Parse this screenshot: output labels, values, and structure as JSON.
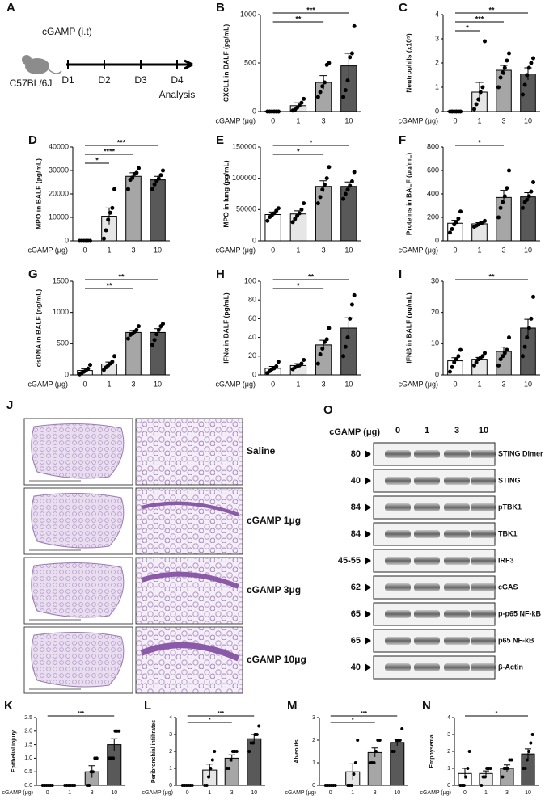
{
  "chart_data": [
    {
      "type": "bar",
      "panel": "B",
      "y_label": "CXCL1 in BALF (pg/mL)",
      "x_label": "cGAMP (μg)",
      "categories": [
        "0",
        "1",
        "3",
        "10"
      ],
      "values": [
        5,
        60,
        300,
        470
      ],
      "errors": [
        3,
        30,
        70,
        130
      ],
      "points": [
        [
          0,
          0,
          0,
          0,
          0,
          0
        ],
        [
          10,
          20,
          40,
          60,
          90,
          130
        ],
        [
          150,
          200,
          260,
          300,
          480,
          500
        ],
        [
          150,
          220,
          320,
          560,
          600,
          880
        ]
      ],
      "bar_colors": [
        "#ffffff",
        "#e6e6e6",
        "#a6a6a6",
        "#595959"
      ],
      "ylim": [
        0,
        1000
      ],
      "yticks": [
        0,
        500,
        1000
      ],
      "brackets": [
        {
          "from": "0",
          "to": "10",
          "label": "***"
        },
        {
          "from": "0",
          "to": "3",
          "label": "**"
        }
      ]
    },
    {
      "type": "bar",
      "panel": "C",
      "y_label": "Neutrophils (x10⁵)",
      "x_label": "cGAMP (μg)",
      "categories": [
        "0",
        "1",
        "3",
        "10"
      ],
      "values": [
        0.02,
        0.8,
        1.7,
        1.55
      ],
      "errors": [
        0.01,
        0.4,
        0.2,
        0.25
      ],
      "points": [
        [
          0,
          0,
          0,
          0,
          0,
          0
        ],
        [
          0.1,
          0.3,
          0.5,
          0.8,
          1.0,
          2.9
        ],
        [
          1.0,
          1.4,
          1.6,
          1.8,
          2.1,
          2.4
        ],
        [
          0.7,
          1.1,
          1.5,
          1.8,
          2.0,
          2.2
        ]
      ],
      "bar_colors": [
        "#ffffff",
        "#e6e6e6",
        "#a6a6a6",
        "#595959"
      ],
      "ylim": [
        0,
        4
      ],
      "yticks": [
        0,
        1,
        2,
        3,
        4
      ],
      "brackets": [
        {
          "from": "0",
          "to": "10",
          "label": "**"
        },
        {
          "from": "0",
          "to": "3",
          "label": "***"
        },
        {
          "from": "0",
          "to": "1",
          "label": "*"
        }
      ]
    },
    {
      "type": "bar",
      "panel": "D",
      "y_label": "MPO in BALF (pg/mL)",
      "x_label": "cGAMP (μg)",
      "categories": [
        "0",
        "1",
        "3",
        "10"
      ],
      "values": [
        0,
        10500,
        27500,
        26000
      ],
      "errors": [
        0,
        3500,
        1500,
        1500
      ],
      "points": [
        [
          0,
          0,
          0,
          0,
          0,
          0
        ],
        [
          1000,
          4500,
          9000,
          12000,
          14000,
          22000
        ],
        [
          22000,
          26000,
          27000,
          28500,
          29000,
          31000
        ],
        [
          22000,
          24000,
          25500,
          26500,
          28000,
          30000
        ]
      ],
      "bar_colors": [
        "#ffffff",
        "#e6e6e6",
        "#a6a6a6",
        "#595959"
      ],
      "ylim": [
        0,
        40000
      ],
      "yticks": [
        0,
        10000,
        20000,
        30000,
        40000
      ],
      "brackets": [
        {
          "from": "0",
          "to": "10",
          "label": "***"
        },
        {
          "from": "0",
          "to": "3",
          "label": "****"
        },
        {
          "from": "0",
          "to": "1",
          "label": "*"
        }
      ]
    },
    {
      "type": "bar",
      "panel": "E",
      "y_label": "MPO in lung (pg/mL)",
      "x_label": "cGAMP (μg)",
      "categories": [
        "0",
        "1",
        "3",
        "10"
      ],
      "values": [
        42000,
        43000,
        87000,
        87000
      ],
      "errors": [
        4000,
        5000,
        9000,
        7000
      ],
      "points": [
        [
          32000,
          38000,
          41000,
          44000,
          48000,
          52000
        ],
        [
          30000,
          35000,
          40000,
          44000,
          50000,
          60000
        ],
        [
          60000,
          70000,
          82000,
          90000,
          100000,
          118000
        ],
        [
          67000,
          75000,
          82000,
          88000,
          95000,
          110000
        ]
      ],
      "bar_colors": [
        "#ffffff",
        "#e6e6e6",
        "#a6a6a6",
        "#595959"
      ],
      "ylim": [
        0,
        150000
      ],
      "yticks": [
        0,
        50000,
        100000,
        150000
      ],
      "brackets": [
        {
          "from": "0",
          "to": "10",
          "label": "*"
        },
        {
          "from": "0",
          "to": "3",
          "label": "*"
        }
      ]
    },
    {
      "type": "bar",
      "panel": "F",
      "y_label": "Proteins in BALF (μg/mL)",
      "x_label": "cGAMP (μg)",
      "categories": [
        "0",
        "1",
        "3",
        "10"
      ],
      "values": [
        150,
        145,
        370,
        375
      ],
      "errors": [
        25,
        10,
        60,
        35
      ],
      "points": [
        [
          70,
          100,
          140,
          160,
          190,
          250
        ],
        [
          120,
          130,
          140,
          150,
          155,
          170
        ],
        [
          200,
          280,
          330,
          380,
          450,
          600
        ],
        [
          280,
          330,
          350,
          380,
          420,
          500
        ]
      ],
      "bar_colors": [
        "#ffffff",
        "#e6e6e6",
        "#a6a6a6",
        "#595959"
      ],
      "ylim": [
        0,
        800
      ],
      "yticks": [
        0,
        200,
        400,
        600,
        800
      ],
      "brackets": [
        {
          "from": "0",
          "to": "3",
          "label": "*"
        }
      ]
    },
    {
      "type": "bar",
      "panel": "G",
      "y_label": "dsDNA in BALF (ng/mL)",
      "x_label": "cGAMP (μg)",
      "categories": [
        "0",
        "1",
        "3",
        "10"
      ],
      "values": [
        70,
        175,
        680,
        680
      ],
      "errors": [
        25,
        30,
        30,
        60
      ],
      "points": [
        [
          10,
          30,
          50,
          70,
          100,
          160
        ],
        [
          80,
          120,
          150,
          180,
          210,
          300
        ],
        [
          580,
          640,
          660,
          690,
          720,
          780
        ],
        [
          480,
          560,
          650,
          720,
          780,
          820
        ]
      ],
      "bar_colors": [
        "#ffffff",
        "#e6e6e6",
        "#a6a6a6",
        "#595959"
      ],
      "ylim": [
        0,
        1500
      ],
      "yticks": [
        0,
        500,
        1000,
        1500
      ],
      "brackets": [
        {
          "from": "0",
          "to": "10",
          "label": "**"
        },
        {
          "from": "0",
          "to": "3",
          "label": "**"
        }
      ]
    },
    {
      "type": "bar",
      "panel": "H",
      "y_label": "IFNα in BALF (pg/mL)",
      "x_label": "cGAMP (μg)",
      "categories": [
        "0",
        "1",
        "3",
        "10"
      ],
      "values": [
        7,
        10,
        32,
        50
      ],
      "errors": [
        2,
        2,
        5,
        11
      ],
      "points": [
        [
          2,
          4,
          6,
          7,
          9,
          14
        ],
        [
          6,
          8,
          9,
          10,
          12,
          16
        ],
        [
          12,
          22,
          28,
          35,
          38,
          50
        ],
        [
          20,
          30,
          40,
          60,
          75,
          85
        ]
      ],
      "bar_colors": [
        "#ffffff",
        "#e6e6e6",
        "#a6a6a6",
        "#595959"
      ],
      "ylim": [
        0,
        100
      ],
      "yticks": [
        0,
        20,
        40,
        60,
        80,
        100
      ],
      "brackets": [
        {
          "from": "0",
          "to": "10",
          "label": "**"
        },
        {
          "from": "0",
          "to": "3",
          "label": "*"
        }
      ]
    },
    {
      "type": "bar",
      "panel": "I",
      "y_label": "IFNβ in BALF (pg/mL)",
      "x_label": "cGAMP (μg)",
      "categories": [
        "0",
        "1",
        "3",
        "10"
      ],
      "values": [
        4.5,
        5,
        7.5,
        15
      ],
      "errors": [
        1,
        0.6,
        1.4,
        2.8
      ],
      "points": [
        [
          1,
          2.5,
          4,
          5,
          6,
          8
        ],
        [
          3,
          4,
          5,
          5.5,
          6,
          7
        ],
        [
          3,
          5,
          6,
          7,
          8,
          12
        ],
        [
          6,
          9,
          12,
          15,
          18,
          25
        ]
      ],
      "bar_colors": [
        "#ffffff",
        "#e6e6e6",
        "#a6a6a6",
        "#595959"
      ],
      "ylim": [
        0,
        30
      ],
      "yticks": [
        0,
        10,
        20,
        30
      ],
      "brackets": [
        {
          "from": "0",
          "to": "10",
          "label": "**"
        }
      ]
    },
    {
      "type": "bar",
      "panel": "K",
      "y_label": "Epithelial injury",
      "x_label": "cGAMP (μg)",
      "categories": [
        "0",
        "1",
        "3",
        "10"
      ],
      "values": [
        0,
        0,
        0.5,
        1.5
      ],
      "errors": [
        0,
        0,
        0.22,
        0.22
      ],
      "points": [
        [
          0,
          0,
          0,
          0,
          0,
          0
        ],
        [
          0,
          0,
          0,
          0,
          0,
          0
        ],
        [
          0,
          0,
          0.5,
          0.5,
          1,
          1
        ],
        [
          1,
          1,
          1,
          2,
          2,
          2
        ]
      ],
      "bar_colors": [
        "#ffffff",
        "#e6e6e6",
        "#a6a6a6",
        "#595959"
      ],
      "ylim": [
        0,
        2.5
      ],
      "yticks": [
        {
          "value": 0,
          "label": "0.0"
        },
        0.5,
        {
          "value": 1,
          "label": "1.0"
        },
        1.5,
        {
          "value": 2,
          "label": "2.0"
        },
        2.5
      ],
      "brackets": [
        {
          "from": "0",
          "to": "10",
          "label": "***"
        }
      ]
    },
    {
      "type": "bar",
      "panel": "L",
      "y_label": "Peribronchial infiltrates",
      "x_label": "cGAMP (μg)",
      "categories": [
        "0",
        "1",
        "3",
        "10"
      ],
      "values": [
        0,
        0.9,
        1.6,
        2.75
      ],
      "errors": [
        0,
        0.35,
        0.2,
        0.25
      ],
      "points": [
        [
          0,
          0,
          0,
          0,
          0,
          0
        ],
        [
          0,
          0,
          0.5,
          1,
          1.5,
          2
        ],
        [
          1,
          1,
          1.5,
          2,
          2,
          2
        ],
        [
          2,
          2.5,
          2.5,
          3,
          3,
          3.5
        ]
      ],
      "bar_colors": [
        "#ffffff",
        "#e6e6e6",
        "#a6a6a6",
        "#595959"
      ],
      "ylim": [
        0,
        4
      ],
      "yticks": [
        0,
        1,
        2,
        3,
        4
      ],
      "brackets": [
        {
          "from": "0",
          "to": "10",
          "label": "***"
        },
        {
          "from": "0",
          "to": "3",
          "label": "*"
        }
      ]
    },
    {
      "type": "bar",
      "panel": "M",
      "y_label": "Alveolits",
      "x_label": "cGAMP (μg)",
      "categories": [
        "0",
        "1",
        "3",
        "10"
      ],
      "values": [
        0,
        0.6,
        1.45,
        1.9
      ],
      "errors": [
        0,
        0.35,
        0.2,
        0.15
      ],
      "points": [
        [
          0,
          0,
          0,
          0,
          0,
          0
        ],
        [
          0,
          0,
          0,
          0.5,
          1,
          2
        ],
        [
          1,
          1,
          1,
          1.5,
          2,
          2
        ],
        [
          1.5,
          1.5,
          2,
          2,
          2,
          2.5
        ]
      ],
      "bar_colors": [
        "#ffffff",
        "#e6e6e6",
        "#a6a6a6",
        "#595959"
      ],
      "ylim": [
        0,
        3
      ],
      "yticks": [
        0,
        1,
        2,
        3
      ],
      "brackets": [
        {
          "from": "0",
          "to": "10",
          "label": "***"
        },
        {
          "from": "0",
          "to": "3",
          "label": "*"
        }
      ]
    },
    {
      "type": "bar",
      "panel": "N",
      "y_label": "Emphysema",
      "x_label": "cGAMP (μg)",
      "categories": [
        "0",
        "1",
        "3",
        "10"
      ],
      "values": [
        0.7,
        0.7,
        1.0,
        1.85
      ],
      "errors": [
        0.3,
        0.15,
        0.2,
        0.3
      ],
      "points": [
        [
          0,
          0,
          0,
          0.5,
          1,
          2
        ],
        [
          0,
          0.5,
          0.5,
          1,
          1,
          1
        ],
        [
          0.5,
          1,
          1,
          1,
          1.5,
          1.5
        ],
        [
          1,
          1,
          1.5,
          2,
          2.5,
          3
        ]
      ],
      "bar_colors": [
        "#ffffff",
        "#e6e6e6",
        "#a6a6a6",
        "#595959"
      ],
      "ylim": [
        0,
        4
      ],
      "yticks": [
        0,
        1,
        2,
        3,
        4
      ],
      "brackets": [
        {
          "from": "0",
          "to": "10",
          "label": "*"
        }
      ]
    }
  ],
  "panel_a": {
    "panel": "A",
    "treatment": "cGAMP (i.t)",
    "strain": "C57BL/6J",
    "days": [
      "D1",
      "D2",
      "D3",
      "D4"
    ],
    "endpoint": "Analysis"
  },
  "panel_j": {
    "panel": "J",
    "groups": [
      "Saline",
      "cGAMP 1μg",
      "cGAMP 3μg",
      "cGAMP 10μg"
    ]
  },
  "panel_o": {
    "panel": "O",
    "dose_label": "cGAMP (μg)",
    "lanes": [
      "0",
      "1",
      "3",
      "10"
    ],
    "rows": [
      {
        "kda": "80",
        "protein": "STING Dimer"
      },
      {
        "kda": "40",
        "protein": "STING"
      },
      {
        "kda": "84",
        "protein": "pTBK1"
      },
      {
        "kda": "84",
        "protein": "TBK1"
      },
      {
        "kda": "45-55",
        "protein": "IRF3"
      },
      {
        "kda": "62",
        "protein": "cGAS"
      },
      {
        "kda": "65",
        "protein": "p-p65 NF-kB"
      },
      {
        "kda": "65",
        "protein": "p65 NF-kB"
      },
      {
        "kda": "40",
        "protein": "β-Actin"
      }
    ]
  }
}
